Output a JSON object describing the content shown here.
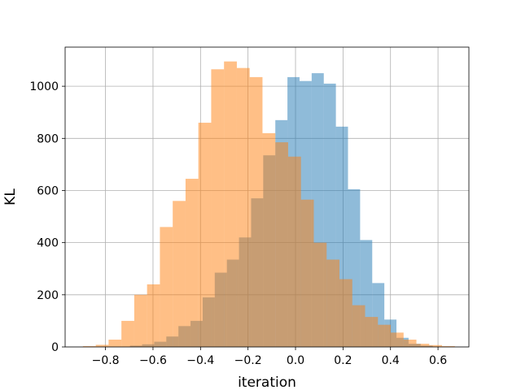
{
  "chart_data": {
    "type": "bar",
    "subtype": "overlapping-histogram",
    "title": "",
    "xlabel": "iteration",
    "ylabel": "KL",
    "xlim": [
      -0.97,
      0.73
    ],
    "ylim": [
      0,
      1150
    ],
    "grid": true,
    "xticks": [
      -0.8,
      -0.6,
      -0.4,
      -0.2,
      0.0,
      0.2,
      0.4,
      0.6
    ],
    "xtick_labels": [
      "−0.8",
      "−0.6",
      "−0.4",
      "−0.2",
      "0.0",
      "0.2",
      "0.4",
      "0.6"
    ],
    "yticks": [
      0,
      200,
      400,
      600,
      800,
      1000
    ],
    "ytick_labels": [
      "0",
      "200",
      "400",
      "600",
      "800",
      "1000"
    ],
    "series": [
      {
        "color": "#1f77b4",
        "opacity": 0.5,
        "bins": [
          {
            "x0": -0.697,
            "x1": -0.646,
            "count": 5
          },
          {
            "x0": -0.646,
            "x1": -0.595,
            "count": 10
          },
          {
            "x0": -0.595,
            "x1": -0.544,
            "count": 20
          },
          {
            "x0": -0.544,
            "x1": -0.493,
            "count": 40
          },
          {
            "x0": -0.493,
            "x1": -0.442,
            "count": 80
          },
          {
            "x0": -0.442,
            "x1": -0.391,
            "count": 100
          },
          {
            "x0": -0.391,
            "x1": -0.34,
            "count": 190
          },
          {
            "x0": -0.34,
            "x1": -0.289,
            "count": 285
          },
          {
            "x0": -0.289,
            "x1": -0.238,
            "count": 335
          },
          {
            "x0": -0.238,
            "x1": -0.187,
            "count": 420
          },
          {
            "x0": -0.187,
            "x1": -0.136,
            "count": 570
          },
          {
            "x0": -0.136,
            "x1": -0.085,
            "count": 735
          },
          {
            "x0": -0.085,
            "x1": -0.034,
            "count": 870
          },
          {
            "x0": -0.034,
            "x1": 0.017,
            "count": 1035
          },
          {
            "x0": 0.017,
            "x1": 0.068,
            "count": 1020
          },
          {
            "x0": 0.068,
            "x1": 0.119,
            "count": 1050
          },
          {
            "x0": 0.119,
            "x1": 0.17,
            "count": 1010
          },
          {
            "x0": 0.17,
            "x1": 0.221,
            "count": 845
          },
          {
            "x0": 0.221,
            "x1": 0.272,
            "count": 605
          },
          {
            "x0": 0.272,
            "x1": 0.323,
            "count": 410
          },
          {
            "x0": 0.323,
            "x1": 0.374,
            "count": 245
          },
          {
            "x0": 0.374,
            "x1": 0.425,
            "count": 105
          },
          {
            "x0": 0.425,
            "x1": 0.476,
            "count": 35
          },
          {
            "x0": 0.476,
            "x1": 0.527,
            "count": 12
          },
          {
            "x0": 0.527,
            "x1": 0.578,
            "count": 5
          }
        ]
      },
      {
        "color": "#ff7f0e",
        "opacity": 0.5,
        "bins": [
          {
            "x0": -0.895,
            "x1": -0.841,
            "count": 3
          },
          {
            "x0": -0.841,
            "x1": -0.787,
            "count": 8
          },
          {
            "x0": -0.787,
            "x1": -0.733,
            "count": 28
          },
          {
            "x0": -0.733,
            "x1": -0.679,
            "count": 100
          },
          {
            "x0": -0.679,
            "x1": -0.625,
            "count": 200
          },
          {
            "x0": -0.625,
            "x1": -0.571,
            "count": 240
          },
          {
            "x0": -0.571,
            "x1": -0.517,
            "count": 460
          },
          {
            "x0": -0.517,
            "x1": -0.463,
            "count": 560
          },
          {
            "x0": -0.463,
            "x1": -0.409,
            "count": 645
          },
          {
            "x0": -0.409,
            "x1": -0.355,
            "count": 860
          },
          {
            "x0": -0.355,
            "x1": -0.301,
            "count": 1065
          },
          {
            "x0": -0.301,
            "x1": -0.247,
            "count": 1095
          },
          {
            "x0": -0.247,
            "x1": -0.193,
            "count": 1070
          },
          {
            "x0": -0.193,
            "x1": -0.139,
            "count": 1035
          },
          {
            "x0": -0.139,
            "x1": -0.085,
            "count": 820
          },
          {
            "x0": -0.085,
            "x1": -0.031,
            "count": 785
          },
          {
            "x0": -0.031,
            "x1": 0.023,
            "count": 730
          },
          {
            "x0": 0.023,
            "x1": 0.077,
            "count": 565
          },
          {
            "x0": 0.077,
            "x1": 0.131,
            "count": 400
          },
          {
            "x0": 0.131,
            "x1": 0.185,
            "count": 335
          },
          {
            "x0": 0.185,
            "x1": 0.239,
            "count": 260
          },
          {
            "x0": 0.239,
            "x1": 0.293,
            "count": 160
          },
          {
            "x0": 0.293,
            "x1": 0.347,
            "count": 115
          },
          {
            "x0": 0.347,
            "x1": 0.401,
            "count": 85
          },
          {
            "x0": 0.401,
            "x1": 0.455,
            "count": 55
          },
          {
            "x0": 0.455,
            "x1": 0.509,
            "count": 28
          },
          {
            "x0": 0.509,
            "x1": 0.563,
            "count": 12
          },
          {
            "x0": 0.563,
            "x1": 0.617,
            "count": 7
          },
          {
            "x0": 0.617,
            "x1": 0.671,
            "count": 3
          }
        ]
      }
    ]
  }
}
